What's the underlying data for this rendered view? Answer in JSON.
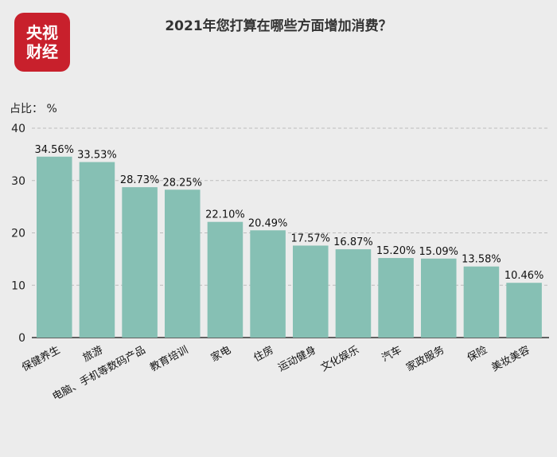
{
  "title": "2021年您打算在哪些方面增加消费？",
  "logo": {
    "line1": "央视",
    "line2": "财经",
    "color": "#c8202c"
  },
  "y_unit_label": "占比： %",
  "chart_data": {
    "type": "bar",
    "title": "2021年您打算在哪些方面增加消费？",
    "ylabel": "占比： %",
    "xlabel": "",
    "ylim": [
      0,
      40
    ],
    "yticks": [
      0,
      10,
      20,
      30,
      40
    ],
    "grid": true,
    "categories": [
      "保健养生",
      "旅游",
      "电脑、手机等数码产品",
      "教育培训",
      "家电",
      "住房",
      "运动健身",
      "文化娱乐",
      "汽车",
      "家政服务",
      "保险",
      "美妆美容"
    ],
    "values": [
      34.56,
      33.53,
      28.73,
      28.25,
      22.1,
      20.49,
      17.57,
      16.87,
      15.2,
      15.09,
      13.58,
      10.46
    ],
    "value_labels": [
      "34.56%",
      "33.53%",
      "28.73%",
      "28.25%",
      "22.10%",
      "20.49%",
      "17.57%",
      "16.87%",
      "15.20%",
      "15.09%",
      "13.58%",
      "10.46%"
    ],
    "bar_color": "#86c0b4"
  }
}
